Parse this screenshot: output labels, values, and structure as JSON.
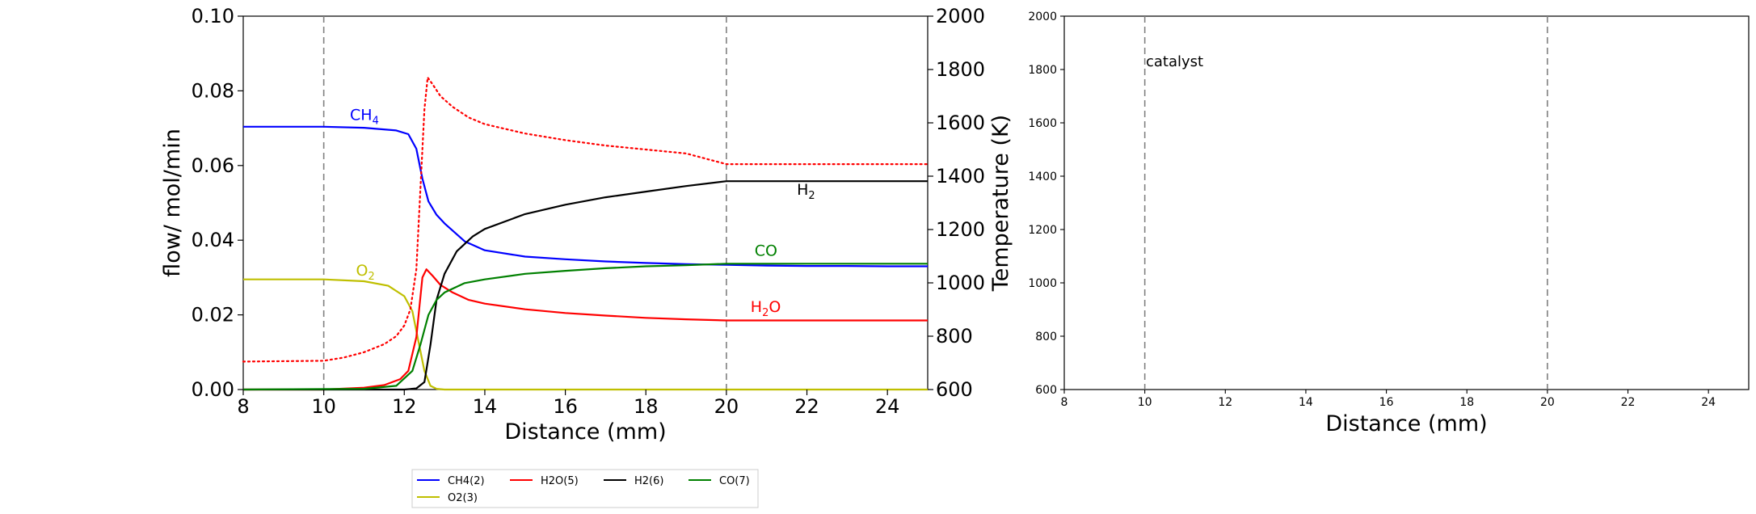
{
  "colors": {
    "ch4": "#0000ff",
    "o2": "#bfbf00",
    "h2o": "#ff0000",
    "h2": "#000000",
    "co": "#008000",
    "temperature": "#ff0000",
    "catalyst_lines": "#808080"
  },
  "chart_data": [
    {
      "type": "line",
      "title": "",
      "xlabel": "Distance (mm)",
      "ylabel": "flow/ mol/min",
      "y2label": "Temperature (K)",
      "xlim": [
        8,
        25
      ],
      "ylim": [
        0.0,
        0.1
      ],
      "y2lim": [
        600,
        2000
      ],
      "xticks": [
        "8",
        "10",
        "12",
        "14",
        "16",
        "18",
        "20",
        "22",
        "24"
      ],
      "yticks": [
        "0.00",
        "0.02",
        "0.04",
        "0.06",
        "0.08",
        "0.10"
      ],
      "y2ticks": [
        "600",
        "800",
        "1000",
        "1200",
        "1400",
        "1600",
        "1800",
        "2000"
      ],
      "grid": false,
      "catalyst_bounds": [
        10,
        20
      ],
      "legend_position": "below plot",
      "legend_entries": [
        "CH4(2)",
        "H2O(5)",
        "H2(6)",
        "CO(7)",
        "O2(3)"
      ],
      "series": [
        {
          "name": "CH4(2)",
          "label": "CH",
          "label_sub": "4",
          "axis": "left",
          "x": [
            8,
            10,
            11,
            11.8,
            12.1,
            12.3,
            12.45,
            12.6,
            12.8,
            13,
            13.5,
            14,
            15,
            16,
            17,
            18,
            19,
            20,
            21,
            22,
            23,
            24,
            25
          ],
          "y": [
            0.0704,
            0.0704,
            0.0701,
            0.0694,
            0.0684,
            0.0645,
            0.0565,
            0.0504,
            0.0468,
            0.0445,
            0.0397,
            0.0373,
            0.0356,
            0.0349,
            0.0343,
            0.0339,
            0.0336,
            0.0334,
            0.0332,
            0.0331,
            0.0331,
            0.033,
            0.033
          ]
        },
        {
          "name": "O2(3)",
          "label": "O",
          "label_sub": "2",
          "axis": "left",
          "x": [
            8,
            10,
            11,
            11.6,
            12,
            12.2,
            12.35,
            12.5,
            12.65,
            12.8,
            13,
            25
          ],
          "y": [
            0.0295,
            0.0295,
            0.029,
            0.0278,
            0.025,
            0.021,
            0.013,
            0.005,
            0.001,
            0.0002,
            0.0,
            0.0
          ]
        },
        {
          "name": "H2O(5)",
          "label": "H",
          "label_sub": "2",
          "label_tail": "O",
          "axis": "left",
          "x": [
            8,
            10,
            11,
            11.5,
            11.9,
            12.1,
            12.3,
            12.45,
            12.55,
            12.7,
            12.9,
            13.2,
            13.6,
            14,
            15,
            16,
            17,
            18,
            19,
            20,
            21,
            22,
            23,
            24,
            25
          ],
          "y": [
            0.0,
            0.0,
            0.0005,
            0.0012,
            0.0028,
            0.005,
            0.014,
            0.03,
            0.0322,
            0.0305,
            0.028,
            0.026,
            0.024,
            0.023,
            0.0215,
            0.0205,
            0.0198,
            0.0192,
            0.0188,
            0.0185,
            0.0185,
            0.0185,
            0.0185,
            0.0185,
            0.0185
          ]
        },
        {
          "name": "H2(6)",
          "label": "H",
          "label_sub": "2",
          "axis": "left",
          "x": [
            8,
            12,
            12.3,
            12.5,
            12.65,
            12.8,
            13,
            13.3,
            13.7,
            14,
            15,
            16,
            17,
            18,
            19,
            20,
            21,
            22,
            23,
            24,
            25
          ],
          "y": [
            0.0,
            0.0,
            0.0003,
            0.002,
            0.012,
            0.024,
            0.031,
            0.037,
            0.041,
            0.043,
            0.047,
            0.0495,
            0.0515,
            0.053,
            0.0545,
            0.0558,
            0.0558,
            0.0558,
            0.0558,
            0.0558,
            0.0558
          ]
        },
        {
          "name": "CO(7)",
          "label": "CO",
          "axis": "left",
          "x": [
            8,
            11,
            11.8,
            12.2,
            12.4,
            12.6,
            12.8,
            13,
            13.5,
            14,
            15,
            16,
            17,
            18,
            19,
            20,
            21,
            22,
            23,
            24,
            25
          ],
          "y": [
            0.0,
            0.0002,
            0.001,
            0.005,
            0.012,
            0.02,
            0.024,
            0.026,
            0.0285,
            0.0295,
            0.031,
            0.0318,
            0.0325,
            0.033,
            0.0333,
            0.0337,
            0.0337,
            0.0337,
            0.0337,
            0.0337,
            0.0337
          ]
        },
        {
          "name": "Temperature",
          "style": "dotted",
          "axis": "right",
          "x": [
            8,
            10,
            10.5,
            11,
            11.5,
            11.8,
            12,
            12.15,
            12.3,
            12.4,
            12.5,
            12.58,
            12.7,
            12.9,
            13.2,
            13.6,
            14,
            15,
            16,
            17,
            18,
            19,
            20,
            21,
            22,
            23,
            24,
            25
          ],
          "y": [
            705,
            708,
            720,
            740,
            770,
            800,
            840,
            900,
            1050,
            1350,
            1650,
            1770,
            1745,
            1700,
            1660,
            1620,
            1595,
            1560,
            1535,
            1515,
            1500,
            1485,
            1445,
            1445,
            1445,
            1445,
            1445,
            1445
          ]
        }
      ]
    },
    {
      "type": "line",
      "title": "",
      "xlabel": "Distance (mm)",
      "ylabel": "",
      "xlim": [
        8,
        25
      ],
      "ylim": [
        600,
        2000
      ],
      "xticks": [
        "8",
        "10",
        "12",
        "14",
        "16",
        "18",
        "20",
        "22",
        "24"
      ],
      "yticks": [
        "600",
        "800",
        "1000",
        "1200",
        "1400",
        "1600",
        "1800",
        "2000"
      ],
      "grid": false,
      "catalyst_bounds": [
        10,
        20
      ],
      "annotation": "catalyst",
      "series": []
    }
  ]
}
